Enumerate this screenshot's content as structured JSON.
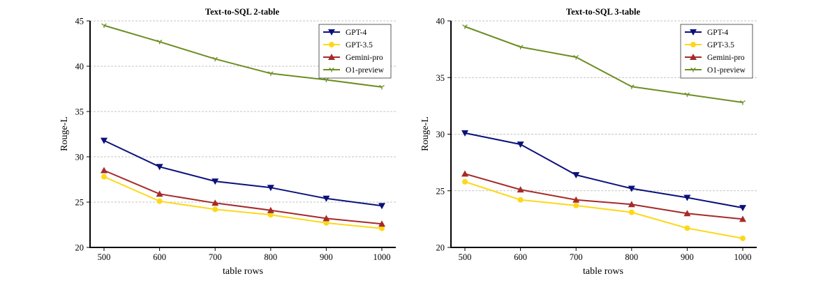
{
  "chart_data": [
    {
      "type": "line",
      "title": "Text-to-SQL 2-table",
      "xlabel": "table rows",
      "ylabel": "Rouge-L",
      "x": [
        500,
        600,
        700,
        800,
        900,
        1000
      ],
      "xticks": [
        "500",
        "600",
        "700",
        "800",
        "900",
        "1000"
      ],
      "yticks": [
        "20",
        "25",
        "30",
        "35",
        "40",
        "45"
      ],
      "ylim": [
        20,
        45
      ],
      "grid": "horizontal dashed",
      "legend": "top-right",
      "series": [
        {
          "name": "GPT-4",
          "color": "#0a117a",
          "marker": "triangle-down",
          "values": [
            31.8,
            28.9,
            27.3,
            26.6,
            25.4,
            24.6
          ]
        },
        {
          "name": "GPT-3.5",
          "color": "#fdd819",
          "marker": "circle",
          "values": [
            27.8,
            25.1,
            24.2,
            23.6,
            22.7,
            22.1
          ]
        },
        {
          "name": "Gemini-pro",
          "color": "#a52a2a",
          "marker": "triangle-up",
          "values": [
            28.5,
            25.9,
            24.9,
            24.1,
            23.2,
            22.6
          ]
        },
        {
          "name": "O1-preview",
          "color": "#6b8e23",
          "marker": "tri-down",
          "values": [
            44.5,
            42.7,
            40.8,
            39.2,
            38.5,
            37.7
          ]
        }
      ]
    },
    {
      "type": "line",
      "title": "Text-to-SQL 3-table",
      "xlabel": "table rows",
      "ylabel": "Rouge-L",
      "x": [
        500,
        600,
        700,
        800,
        900,
        1000
      ],
      "xticks": [
        "500",
        "600",
        "700",
        "800",
        "900",
        "1000"
      ],
      "yticks": [
        "20",
        "25",
        "30",
        "35",
        "40"
      ],
      "ylim": [
        20,
        40
      ],
      "grid": "horizontal dashed",
      "legend": "top-right",
      "series": [
        {
          "name": "GPT-4",
          "color": "#0a117a",
          "marker": "triangle-down",
          "values": [
            30.1,
            29.1,
            26.4,
            25.2,
            24.4,
            23.5
          ]
        },
        {
          "name": "GPT-3.5",
          "color": "#fdd819",
          "marker": "circle",
          "values": [
            25.8,
            24.2,
            23.7,
            23.1,
            21.7,
            20.8
          ]
        },
        {
          "name": "Gemini-pro",
          "color": "#a52a2a",
          "marker": "triangle-up",
          "values": [
            26.5,
            25.1,
            24.2,
            23.8,
            23.0,
            22.5
          ]
        },
        {
          "name": "O1-preview",
          "color": "#6b8e23",
          "marker": "tri-down",
          "values": [
            39.5,
            37.7,
            36.8,
            34.2,
            33.5,
            32.8
          ]
        }
      ]
    }
  ]
}
